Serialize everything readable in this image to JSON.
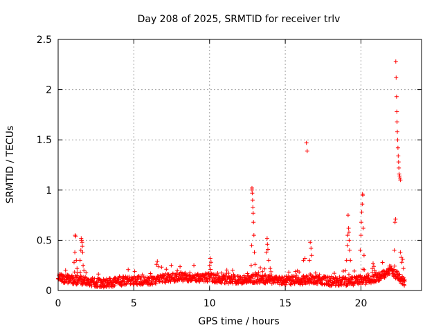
{
  "chart_data": {
    "type": "scatter",
    "title": "Day 208 of 2025, SRMTID for receiver trlv",
    "xlabel": "GPS time / hours",
    "ylabel": "SRMTID / TECUs",
    "xlim": [
      0,
      24
    ],
    "ylim": [
      0,
      2.5
    ],
    "xticks": [
      0,
      5,
      10,
      15,
      20
    ],
    "xtick_labels": [
      "0",
      "5",
      "10",
      "15",
      "20"
    ],
    "yticks": [
      0,
      0.5,
      1,
      1.5,
      2,
      2.5
    ],
    "ytick_labels": [
      "0",
      "0.5",
      "1",
      "1.5",
      "2",
      "2.5"
    ],
    "grid": true,
    "marker": "+",
    "color": "#ff0000",
    "series": [
      {
        "name": "SRMTID",
        "baseline_x": [
          0,
          1,
          2,
          3,
          4,
          5,
          6,
          7,
          8,
          9,
          10,
          11,
          12,
          13,
          14,
          15,
          16,
          17,
          18,
          19,
          20,
          21,
          22,
          22.9
        ],
        "baseline_y": [
          0.12,
          0.11,
          0.09,
          0.07,
          0.09,
          0.1,
          0.1,
          0.12,
          0.14,
          0.13,
          0.13,
          0.11,
          0.1,
          0.12,
          0.11,
          0.1,
          0.1,
          0.11,
          0.09,
          0.09,
          0.1,
          0.12,
          0.2,
          0.08
        ],
        "bursts": [
          {
            "x": [
              1.05,
              1.1,
              1.12,
              1.15,
              1.2,
              1.25,
              1.3
            ],
            "y": [
              0.28,
              0.38,
              0.55,
              0.54,
              0.3,
              0.22,
              0.18
            ]
          },
          {
            "x": [
              1.45,
              1.5,
              1.52,
              1.55,
              1.58,
              1.6,
              1.62,
              1.65,
              1.7
            ],
            "y": [
              0.3,
              0.4,
              0.52,
              0.5,
              0.48,
              0.44,
              0.38,
              0.25,
              0.2
            ]
          },
          {
            "x": [
              6.5,
              6.55,
              6.6
            ],
            "y": [
              0.26,
              0.29,
              0.24
            ]
          },
          {
            "x": [
              10.0,
              10.05,
              10.1
            ],
            "y": [
              0.25,
              0.32,
              0.28
            ]
          },
          {
            "x": [
              12.75,
              12.78,
              12.8,
              12.8,
              12.82,
              12.84,
              12.86,
              12.88,
              12.9,
              12.93,
              12.96,
              13.0
            ],
            "y": [
              0.25,
              0.45,
              1.0,
              1.02,
              0.97,
              0.9,
              0.83,
              0.77,
              0.68,
              0.55,
              0.38,
              0.26
            ]
          },
          {
            "x": [
              13.75,
              13.8,
              13.82,
              13.85,
              13.9,
              14.0
            ],
            "y": [
              0.38,
              0.52,
              0.46,
              0.41,
              0.3,
              0.22
            ]
          },
          {
            "x": [
              16.2,
              16.3,
              16.4,
              16.45
            ],
            "y": [
              0.3,
              0.32,
              1.47,
              1.39
            ]
          },
          {
            "x": [
              16.6,
              16.65,
              16.7,
              16.75
            ],
            "y": [
              0.3,
              0.48,
              0.42,
              0.35
            ]
          },
          {
            "x": [
              19.05,
              19.1,
              19.12,
              19.15,
              19.18,
              19.2,
              19.22,
              19.25,
              19.3
            ],
            "y": [
              0.3,
              0.45,
              0.55,
              0.75,
              0.62,
              0.58,
              0.5,
              0.4,
              0.3
            ]
          },
          {
            "x": [
              19.95,
              20.0,
              20.02,
              20.05,
              20.08,
              20.1,
              20.12,
              20.15,
              20.2
            ],
            "y": [
              0.4,
              0.55,
              0.68,
              0.78,
              0.86,
              0.96,
              0.95,
              0.62,
              0.35
            ]
          },
          {
            "x": [
              20.75,
              20.8,
              20.85,
              20.9
            ],
            "y": [
              0.22,
              0.27,
              0.24,
              0.2
            ]
          },
          {
            "x": [
              22.2,
              22.25,
              22.28,
              22.3,
              22.32,
              22.35,
              22.37,
              22.38,
              22.4,
              22.42,
              22.44,
              22.46,
              22.48,
              22.5,
              22.52,
              22.55,
              22.58,
              22.6
            ],
            "y": [
              0.4,
              0.68,
              0.71,
              2.28,
              2.12,
              1.93,
              1.78,
              1.68,
              1.58,
              1.5,
              1.42,
              1.34,
              1.28,
              1.22,
              1.16,
              1.14,
              1.12,
              1.1
            ]
          },
          {
            "x": [
              22.6,
              22.65,
              22.7,
              22.75,
              22.8,
              22.85
            ],
            "y": [
              0.38,
              0.33,
              0.28,
              0.31,
              0.22,
              0.1
            ]
          }
        ]
      }
    ]
  }
}
